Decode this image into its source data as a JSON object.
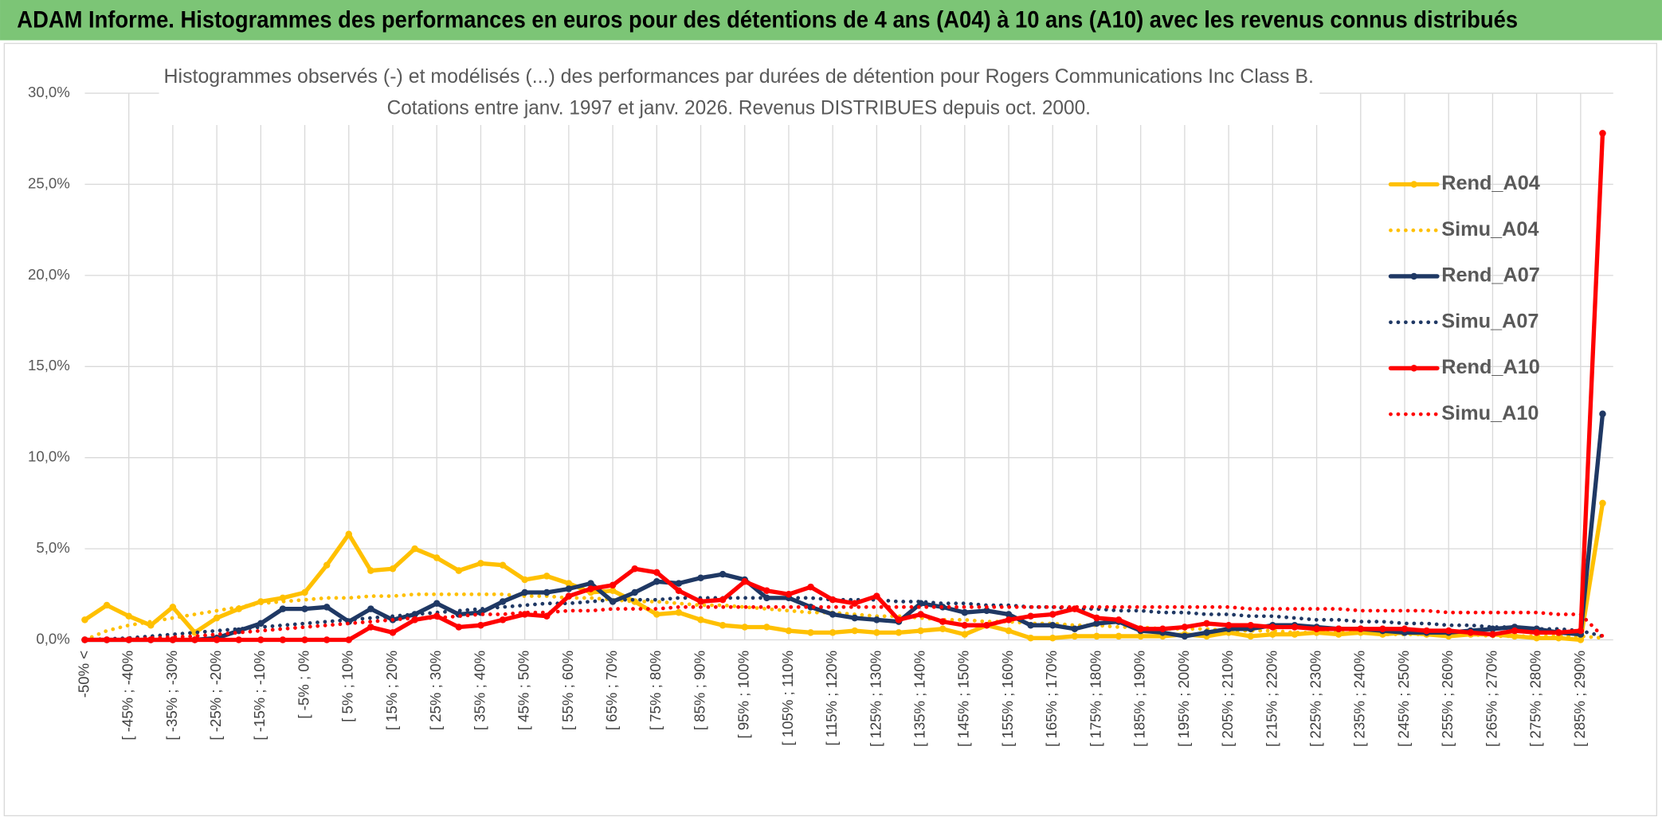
{
  "chart_data": {
    "type": "line",
    "title": "ADAM Informe. Histogrammes des performances en euros pour des détentions de 4 ans (A04) à 10 ans (A10) avec les revenus connus distribués",
    "subtitle": [
      "Histogrammes observés (-) et modélisés (...) des performances par durées de détention pour Rogers Communications Inc Class B.",
      "Cotations entre janv. 1997 et janv. 2026. Revenus DISTRIBUES depuis oct. 2000."
    ],
    "categories": [
      "-50% <",
      null,
      "[ -45% ; -40%",
      null,
      "[ -35% ; -30%",
      null,
      "[ -25% ; -20%",
      null,
      "[ -15% ; -10%",
      null,
      "[ -5% ; 0%",
      null,
      "[ 5% ; 10%",
      null,
      "[ 15% ; 20%",
      null,
      "[ 25% ; 30%",
      null,
      "[ 35% ; 40%",
      null,
      "[ 45% ; 50%",
      null,
      "[ 55% ; 60%",
      null,
      "[ 65% ; 70%",
      null,
      "[ 75% ; 80%",
      null,
      "[ 85% ; 90%",
      null,
      "[ 95% ; 100%",
      null,
      "[ 105% ; 110%",
      null,
      "[ 115% ; 120%",
      null,
      "[ 125% ; 130%",
      null,
      "[ 135% ; 140%",
      null,
      "[ 145% ; 150%",
      null,
      "[ 155% ; 160%",
      null,
      "[ 165% ; 170%",
      null,
      "[ 175% ; 180%",
      null,
      "[ 185% ; 190%",
      null,
      "[ 195% ; 200%",
      null,
      "[ 205% ; 210%",
      null,
      "[ 215% ; 220%",
      null,
      "[ 225% ; 230%",
      null,
      "[ 235% ; 240%",
      null,
      "[ 245% ; 250%",
      null,
      "[ 255% ; 260%",
      null,
      "[ 265% ; 270%",
      null,
      "[ 275% ; 280%",
      null,
      "[ 285% ; 290%",
      null
    ],
    "series": [
      {
        "name": "Rend_A04",
        "color": "#ffc000",
        "dotted": false,
        "values": [
          1.1,
          1.9,
          1.3,
          0.8,
          1.8,
          0.4,
          1.2,
          1.7,
          2.1,
          2.3,
          2.6,
          4.1,
          5.8,
          3.8,
          3.9,
          5.0,
          4.5,
          3.8,
          4.2,
          4.1,
          3.3,
          3.5,
          3.1,
          2.6,
          2.7,
          2.1,
          1.4,
          1.5,
          1.1,
          0.8,
          0.7,
          0.7,
          0.5,
          0.4,
          0.4,
          0.5,
          0.4,
          0.4,
          0.5,
          0.6,
          0.3,
          0.8,
          0.5,
          0.1,
          0.1,
          0.2,
          0.2,
          0.2,
          0.2,
          0.2,
          0.3,
          0.2,
          0.4,
          0.2,
          0.3,
          0.3,
          0.4,
          0.3,
          0.4,
          0.3,
          0.4,
          0.3,
          0.2,
          0.3,
          0.3,
          0.2,
          0.1,
          0.1,
          0.0,
          7.5
        ]
      },
      {
        "name": "Simu_A04",
        "color": "#ffc000",
        "dotted": true,
        "values": [
          0,
          0.5,
          0.8,
          1.0,
          1.2,
          1.4,
          1.6,
          1.8,
          2.0,
          2.1,
          2.2,
          2.3,
          2.3,
          2.4,
          2.4,
          2.5,
          2.5,
          2.5,
          2.5,
          2.5,
          2.4,
          2.4,
          2.3,
          2.3,
          2.2,
          2.1,
          2.1,
          2.0,
          1.9,
          1.9,
          1.8,
          1.7,
          1.6,
          1.5,
          1.5,
          1.4,
          1.3,
          1.3,
          1.2,
          1.1,
          1.1,
          1.0,
          1.0,
          0.9,
          0.9,
          0.8,
          0.8,
          0.7,
          0.7,
          0.6,
          0.6,
          0.6,
          0.5,
          0.5,
          0.5,
          0.4,
          0.4,
          0.4,
          0.4,
          0.3,
          0.3,
          0.3,
          0.3,
          0.3,
          0.2,
          0.2,
          0.2,
          0.2,
          0.2,
          0.1
        ]
      },
      {
        "name": "Rend_A07",
        "color": "#1f3864",
        "dotted": false,
        "values": [
          0,
          0,
          0,
          0,
          0,
          0,
          0.1,
          0.5,
          0.9,
          1.7,
          1.7,
          1.8,
          1.0,
          1.7,
          1.1,
          1.4,
          2.0,
          1.4,
          1.5,
          2.1,
          2.6,
          2.6,
          2.8,
          3.1,
          2.1,
          2.6,
          3.2,
          3.1,
          3.4,
          3.6,
          3.3,
          2.3,
          2.3,
          1.8,
          1.4,
          1.2,
          1.1,
          1.0,
          2.0,
          1.8,
          1.5,
          1.6,
          1.4,
          0.8,
          0.8,
          0.6,
          0.9,
          1.0,
          0.5,
          0.4,
          0.2,
          0.4,
          0.6,
          0.6,
          0.8,
          0.8,
          0.7,
          0.6,
          0.6,
          0.5,
          0.4,
          0.4,
          0.4,
          0.5,
          0.6,
          0.7,
          0.6,
          0.4,
          0.3,
          12.4
        ]
      },
      {
        "name": "Simu_A07",
        "color": "#1f3864",
        "dotted": true,
        "values": [
          0,
          0.05,
          0.1,
          0.2,
          0.3,
          0.4,
          0.5,
          0.6,
          0.7,
          0.8,
          0.9,
          1.0,
          1.1,
          1.2,
          1.3,
          1.4,
          1.5,
          1.6,
          1.7,
          1.8,
          1.9,
          2.0,
          2.0,
          2.1,
          2.2,
          2.2,
          2.2,
          2.3,
          2.3,
          2.3,
          2.3,
          2.3,
          2.3,
          2.3,
          2.2,
          2.2,
          2.2,
          2.1,
          2.1,
          2.0,
          2.0,
          1.9,
          1.9,
          1.8,
          1.8,
          1.7,
          1.7,
          1.6,
          1.6,
          1.5,
          1.5,
          1.4,
          1.4,
          1.3,
          1.3,
          1.2,
          1.1,
          1.1,
          1.0,
          1.0,
          0.9,
          0.9,
          0.8,
          0.8,
          0.7,
          0.7,
          0.6,
          0.6,
          0.5,
          0.2
        ]
      },
      {
        "name": "Rend_A10",
        "color": "#ff0000",
        "dotted": false,
        "values": [
          0,
          0,
          0,
          0,
          0,
          0,
          0,
          0,
          0,
          0,
          0,
          0,
          0,
          0.7,
          0.4,
          1.1,
          1.3,
          0.7,
          0.8,
          1.1,
          1.4,
          1.3,
          2.4,
          2.8,
          3.0,
          3.9,
          3.7,
          2.7,
          2.1,
          2.2,
          3.2,
          2.7,
          2.5,
          2.9,
          2.2,
          2.0,
          2.4,
          1.1,
          1.4,
          1.0,
          0.8,
          0.8,
          1.1,
          1.3,
          1.4,
          1.7,
          1.2,
          1.1,
          0.6,
          0.6,
          0.7,
          0.9,
          0.8,
          0.8,
          0.7,
          0.7,
          0.6,
          0.6,
          0.6,
          0.6,
          0.6,
          0.5,
          0.5,
          0.4,
          0.3,
          0.5,
          0.4,
          0.4,
          0.5,
          27.8
        ]
      },
      {
        "name": "Simu_A10",
        "color": "#ff0000",
        "dotted": true,
        "values": [
          0,
          0,
          0.05,
          0.1,
          0.15,
          0.2,
          0.3,
          0.4,
          0.5,
          0.6,
          0.7,
          0.8,
          0.9,
          1.0,
          1.1,
          1.2,
          1.2,
          1.3,
          1.4,
          1.4,
          1.5,
          1.5,
          1.6,
          1.6,
          1.7,
          1.7,
          1.7,
          1.8,
          1.8,
          1.8,
          1.8,
          1.8,
          1.8,
          1.8,
          1.8,
          1.8,
          1.8,
          1.8,
          1.8,
          1.8,
          1.8,
          1.8,
          1.8,
          1.8,
          1.8,
          1.8,
          1.8,
          1.8,
          1.8,
          1.8,
          1.8,
          1.8,
          1.8,
          1.7,
          1.7,
          1.7,
          1.7,
          1.7,
          1.6,
          1.6,
          1.6,
          1.6,
          1.5,
          1.5,
          1.5,
          1.5,
          1.5,
          1.4,
          1.4,
          0.2
        ]
      }
    ],
    "ylim": [
      0,
      30
    ],
    "yticks": [
      {
        "value": 0,
        "label": "0,0%"
      },
      {
        "value": 5,
        "label": "5,0%"
      },
      {
        "value": 10,
        "label": "10,0%"
      },
      {
        "value": 15,
        "label": "15,0%"
      },
      {
        "value": 20,
        "label": "20,0%"
      },
      {
        "value": 25,
        "label": "25,0%"
      },
      {
        "value": 30,
        "label": "30,0%"
      }
    ],
    "grid": true,
    "legend": "upper right",
    "header_color": "#7cc576"
  }
}
